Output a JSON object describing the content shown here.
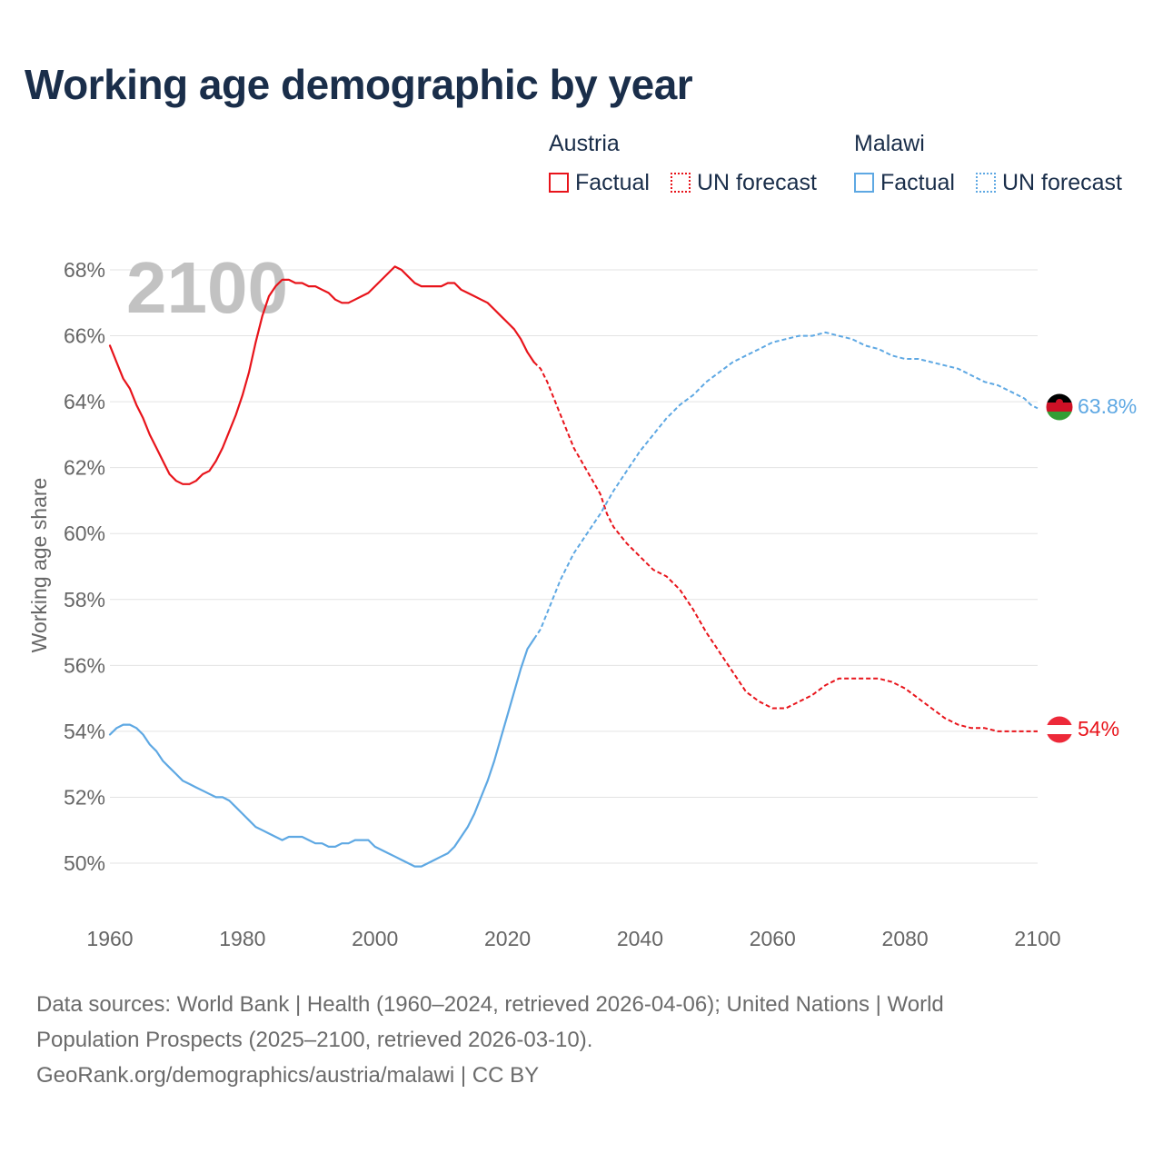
{
  "title": "Working age demographic by year",
  "legend": {
    "groups": [
      {
        "country": "Austria",
        "factual_label": "Factual",
        "forecast_label": "UN forecast",
        "color": "#e8141b"
      },
      {
        "country": "Malawi",
        "factual_label": "Factual",
        "forecast_label": "UN forecast",
        "color": "#5ea8e3"
      }
    ]
  },
  "chart_data": {
    "type": "line",
    "title": "Working age demographic by year",
    "xlabel": "",
    "ylabel": "Working age share",
    "xlim": [
      1960,
      2100
    ],
    "ylim": [
      48.5,
      69
    ],
    "x_ticks": [
      1960,
      1980,
      2000,
      2020,
      2040,
      2060,
      2080,
      2100
    ],
    "y_ticks": [
      50,
      52,
      54,
      56,
      58,
      60,
      62,
      64,
      66,
      68
    ],
    "y_tick_labels": [
      "50%",
      "52%",
      "54%",
      "56%",
      "58%",
      "60%",
      "62%",
      "64%",
      "66%",
      "68%"
    ],
    "x_tick_labels": [
      "1960",
      "1980",
      "2000",
      "2020",
      "2040",
      "2060",
      "2080",
      "2100"
    ],
    "grid": true,
    "watermark_year": "2100",
    "factual_range": [
      1960,
      2024
    ],
    "forecast_range": [
      2024,
      2100
    ],
    "series": [
      {
        "name": "Austria",
        "color": "#e8141b",
        "end_label": "54%",
        "points": [
          [
            1960,
            65.7
          ],
          [
            1961,
            65.2
          ],
          [
            1962,
            64.7
          ],
          [
            1963,
            64.4
          ],
          [
            1964,
            63.9
          ],
          [
            1965,
            63.5
          ],
          [
            1966,
            63.0
          ],
          [
            1967,
            62.6
          ],
          [
            1968,
            62.2
          ],
          [
            1969,
            61.8
          ],
          [
            1970,
            61.6
          ],
          [
            1971,
            61.5
          ],
          [
            1972,
            61.5
          ],
          [
            1973,
            61.6
          ],
          [
            1974,
            61.8
          ],
          [
            1975,
            61.9
          ],
          [
            1976,
            62.2
          ],
          [
            1977,
            62.6
          ],
          [
            1978,
            63.1
          ],
          [
            1979,
            63.6
          ],
          [
            1980,
            64.2
          ],
          [
            1981,
            64.9
          ],
          [
            1982,
            65.8
          ],
          [
            1983,
            66.6
          ],
          [
            1984,
            67.2
          ],
          [
            1985,
            67.5
          ],
          [
            1986,
            67.7
          ],
          [
            1987,
            67.7
          ],
          [
            1988,
            67.6
          ],
          [
            1989,
            67.6
          ],
          [
            1990,
            67.5
          ],
          [
            1991,
            67.5
          ],
          [
            1992,
            67.4
          ],
          [
            1993,
            67.3
          ],
          [
            1994,
            67.1
          ],
          [
            1995,
            67.0
          ],
          [
            1996,
            67.0
          ],
          [
            1997,
            67.1
          ],
          [
            1998,
            67.2
          ],
          [
            1999,
            67.3
          ],
          [
            2000,
            67.5
          ],
          [
            2001,
            67.7
          ],
          [
            2002,
            67.9
          ],
          [
            2003,
            68.1
          ],
          [
            2004,
            68.0
          ],
          [
            2005,
            67.8
          ],
          [
            2006,
            67.6
          ],
          [
            2007,
            67.5
          ],
          [
            2008,
            67.5
          ],
          [
            2009,
            67.5
          ],
          [
            2010,
            67.5
          ],
          [
            2011,
            67.6
          ],
          [
            2012,
            67.6
          ],
          [
            2013,
            67.4
          ],
          [
            2014,
            67.3
          ],
          [
            2015,
            67.2
          ],
          [
            2016,
            67.1
          ],
          [
            2017,
            67.0
          ],
          [
            2018,
            66.8
          ],
          [
            2019,
            66.6
          ],
          [
            2020,
            66.4
          ],
          [
            2021,
            66.2
          ],
          [
            2022,
            65.9
          ],
          [
            2023,
            65.5
          ],
          [
            2024,
            65.2
          ],
          [
            2025,
            65.0
          ],
          [
            2026,
            64.6
          ],
          [
            2028,
            63.6
          ],
          [
            2030,
            62.6
          ],
          [
            2032,
            61.9
          ],
          [
            2034,
            61.2
          ],
          [
            2035,
            60.6
          ],
          [
            2036,
            60.2
          ],
          [
            2038,
            59.7
          ],
          [
            2040,
            59.3
          ],
          [
            2042,
            58.9
          ],
          [
            2044,
            58.7
          ],
          [
            2046,
            58.3
          ],
          [
            2048,
            57.7
          ],
          [
            2050,
            57.0
          ],
          [
            2052,
            56.4
          ],
          [
            2054,
            55.8
          ],
          [
            2056,
            55.2
          ],
          [
            2058,
            54.9
          ],
          [
            2060,
            54.7
          ],
          [
            2062,
            54.7
          ],
          [
            2064,
            54.9
          ],
          [
            2066,
            55.1
          ],
          [
            2068,
            55.4
          ],
          [
            2070,
            55.6
          ],
          [
            2072,
            55.6
          ],
          [
            2074,
            55.6
          ],
          [
            2076,
            55.6
          ],
          [
            2078,
            55.5
          ],
          [
            2080,
            55.3
          ],
          [
            2082,
            55.0
          ],
          [
            2084,
            54.7
          ],
          [
            2086,
            54.4
          ],
          [
            2088,
            54.2
          ],
          [
            2090,
            54.1
          ],
          [
            2092,
            54.1
          ],
          [
            2094,
            54.0
          ],
          [
            2096,
            54.0
          ],
          [
            2098,
            54.0
          ],
          [
            2100,
            54.0
          ]
        ]
      },
      {
        "name": "Malawi",
        "color": "#5ea8e3",
        "end_label": "63.8%",
        "points": [
          [
            1960,
            53.9
          ],
          [
            1961,
            54.1
          ],
          [
            1962,
            54.2
          ],
          [
            1963,
            54.2
          ],
          [
            1964,
            54.1
          ],
          [
            1965,
            53.9
          ],
          [
            1966,
            53.6
          ],
          [
            1967,
            53.4
          ],
          [
            1968,
            53.1
          ],
          [
            1969,
            52.9
          ],
          [
            1970,
            52.7
          ],
          [
            1971,
            52.5
          ],
          [
            1972,
            52.4
          ],
          [
            1973,
            52.3
          ],
          [
            1974,
            52.2
          ],
          [
            1975,
            52.1
          ],
          [
            1976,
            52.0
          ],
          [
            1977,
            52.0
          ],
          [
            1978,
            51.9
          ],
          [
            1979,
            51.7
          ],
          [
            1980,
            51.5
          ],
          [
            1981,
            51.3
          ],
          [
            1982,
            51.1
          ],
          [
            1983,
            51.0
          ],
          [
            1984,
            50.9
          ],
          [
            1985,
            50.8
          ],
          [
            1986,
            50.7
          ],
          [
            1987,
            50.8
          ],
          [
            1988,
            50.8
          ],
          [
            1989,
            50.8
          ],
          [
            1990,
            50.7
          ],
          [
            1991,
            50.6
          ],
          [
            1992,
            50.6
          ],
          [
            1993,
            50.5
          ],
          [
            1994,
            50.5
          ],
          [
            1995,
            50.6
          ],
          [
            1996,
            50.6
          ],
          [
            1997,
            50.7
          ],
          [
            1998,
            50.7
          ],
          [
            1999,
            50.7
          ],
          [
            2000,
            50.5
          ],
          [
            2001,
            50.4
          ],
          [
            2002,
            50.3
          ],
          [
            2003,
            50.2
          ],
          [
            2004,
            50.1
          ],
          [
            2005,
            50.0
          ],
          [
            2006,
            49.9
          ],
          [
            2007,
            49.9
          ],
          [
            2008,
            50.0
          ],
          [
            2009,
            50.1
          ],
          [
            2010,
            50.2
          ],
          [
            2011,
            50.3
          ],
          [
            2012,
            50.5
          ],
          [
            2013,
            50.8
          ],
          [
            2014,
            51.1
          ],
          [
            2015,
            51.5
          ],
          [
            2016,
            52.0
          ],
          [
            2017,
            52.5
          ],
          [
            2018,
            53.1
          ],
          [
            2019,
            53.8
          ],
          [
            2020,
            54.5
          ],
          [
            2021,
            55.2
          ],
          [
            2022,
            55.9
          ],
          [
            2023,
            56.5
          ],
          [
            2024,
            56.8
          ],
          [
            2025,
            57.1
          ],
          [
            2026,
            57.6
          ],
          [
            2028,
            58.6
          ],
          [
            2030,
            59.4
          ],
          [
            2032,
            60.0
          ],
          [
            2034,
            60.6
          ],
          [
            2036,
            61.3
          ],
          [
            2038,
            61.9
          ],
          [
            2040,
            62.5
          ],
          [
            2042,
            63.0
          ],
          [
            2044,
            63.5
          ],
          [
            2046,
            63.9
          ],
          [
            2048,
            64.2
          ],
          [
            2050,
            64.6
          ],
          [
            2052,
            64.9
          ],
          [
            2054,
            65.2
          ],
          [
            2056,
            65.4
          ],
          [
            2058,
            65.6
          ],
          [
            2060,
            65.8
          ],
          [
            2062,
            65.9
          ],
          [
            2064,
            66.0
          ],
          [
            2066,
            66.0
          ],
          [
            2068,
            66.1
          ],
          [
            2070,
            66.0
          ],
          [
            2072,
            65.9
          ],
          [
            2074,
            65.7
          ],
          [
            2076,
            65.6
          ],
          [
            2078,
            65.4
          ],
          [
            2080,
            65.3
          ],
          [
            2082,
            65.3
          ],
          [
            2084,
            65.2
          ],
          [
            2086,
            65.1
          ],
          [
            2088,
            65.0
          ],
          [
            2090,
            64.8
          ],
          [
            2092,
            64.6
          ],
          [
            2094,
            64.5
          ],
          [
            2096,
            64.3
          ],
          [
            2098,
            64.1
          ],
          [
            2099,
            63.9
          ],
          [
            2100,
            63.8
          ]
        ]
      }
    ]
  },
  "footer": {
    "line1": "Data sources: World Bank | Health (1960–2024, retrieved 2026-04-06); United Nations | World",
    "line2": "Population Prospects (2025–2100, retrieved 2026-03-10).",
    "line3": "GeoRank.org/demographics/austria/malawi | CC BY"
  }
}
